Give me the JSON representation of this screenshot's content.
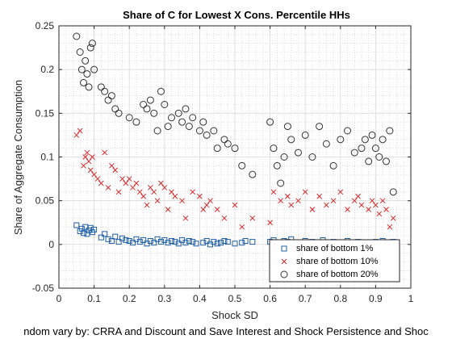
{
  "chart_data": {
    "type": "scatter",
    "title": "Share of C for Lowest X Cons. Percentile HHs",
    "xlabel": "Shock SD",
    "ylabel": "Share of Aggregate Consumption",
    "footnote": "ndom vary by: CRRA and Discount and Save Interest and Shock Persistence and Shoc",
    "xlim": [
      0,
      1
    ],
    "ylim": [
      -0.05,
      0.25
    ],
    "xticks": [
      "0",
      "0.1",
      "0.2",
      "0.3",
      "0.4",
      "0.5",
      "0.6",
      "0.7",
      "0.8",
      "0.9",
      "1"
    ],
    "yticks": [
      "-0.05",
      "0",
      "0.05",
      "0.1",
      "0.15",
      "0.2",
      "0.25"
    ],
    "grid": true,
    "minor_grid": true,
    "legend_position": "bottom-right",
    "series": [
      {
        "name": "share of bottom 1%",
        "marker": "square",
        "color": "#1f5fa8",
        "x": [
          0.05,
          0.06,
          0.065,
          0.07,
          0.075,
          0.08,
          0.085,
          0.09,
          0.095,
          0.1,
          0.12,
          0.13,
          0.14,
          0.15,
          0.16,
          0.17,
          0.18,
          0.19,
          0.2,
          0.21,
          0.22,
          0.23,
          0.24,
          0.25,
          0.26,
          0.27,
          0.28,
          0.29,
          0.3,
          0.31,
          0.32,
          0.33,
          0.34,
          0.35,
          0.36,
          0.37,
          0.38,
          0.39,
          0.41,
          0.42,
          0.43,
          0.44,
          0.45,
          0.46,
          0.47,
          0.48,
          0.5,
          0.52,
          0.53,
          0.55,
          0.6,
          0.61,
          0.62,
          0.63,
          0.64,
          0.65,
          0.66,
          0.68,
          0.69,
          0.7,
          0.72,
          0.74,
          0.75,
          0.76,
          0.78,
          0.8,
          0.82,
          0.84,
          0.85,
          0.86,
          0.88,
          0.9,
          0.91,
          0.92,
          0.93,
          0.94,
          0.95
        ],
        "y": [
          0.022,
          0.015,
          0.018,
          0.013,
          0.02,
          0.012,
          0.016,
          0.019,
          0.014,
          0.017,
          0.008,
          0.012,
          0.006,
          0.004,
          0.009,
          0.003,
          0.007,
          0.005,
          0.004,
          0.002,
          0.006,
          0.003,
          0.005,
          0.001,
          0.004,
          0.002,
          0.006,
          0.003,
          0.005,
          0.002,
          0.004,
          0.003,
          0.001,
          0.005,
          0.002,
          0.004,
          0.003,
          0.001,
          0.002,
          0.004,
          0.0,
          0.003,
          0.001,
          0.002,
          0.004,
          0.003,
          0.001,
          0.002,
          0.004,
          0.003,
          0.003,
          0.005,
          0.001,
          0.002,
          0.004,
          0.003,
          0.006,
          0.002,
          0.001,
          0.004,
          0.003,
          0.002,
          0.005,
          0.001,
          0.003,
          0.002,
          0.004,
          0.001,
          0.003,
          0.002,
          0.001,
          0.003,
          0.002,
          0.004,
          0.001,
          0.002,
          0.003
        ]
      },
      {
        "name": "share of bottom 10%",
        "marker": "x",
        "color": "#d62728",
        "x": [
          0.05,
          0.06,
          0.07,
          0.075,
          0.08,
          0.085,
          0.09,
          0.095,
          0.1,
          0.11,
          0.12,
          0.13,
          0.14,
          0.15,
          0.16,
          0.17,
          0.18,
          0.19,
          0.2,
          0.21,
          0.22,
          0.23,
          0.24,
          0.25,
          0.26,
          0.27,
          0.28,
          0.29,
          0.3,
          0.31,
          0.32,
          0.33,
          0.35,
          0.36,
          0.38,
          0.4,
          0.41,
          0.42,
          0.43,
          0.45,
          0.47,
          0.5,
          0.52,
          0.55,
          0.6,
          0.61,
          0.63,
          0.65,
          0.66,
          0.68,
          0.7,
          0.72,
          0.74,
          0.76,
          0.78,
          0.8,
          0.82,
          0.84,
          0.85,
          0.86,
          0.88,
          0.89,
          0.9,
          0.91,
          0.92,
          0.93,
          0.94,
          0.95
        ],
        "y": [
          0.125,
          0.13,
          0.09,
          0.1,
          0.105,
          0.095,
          0.085,
          0.1,
          0.08,
          0.075,
          0.07,
          0.105,
          0.065,
          0.09,
          0.085,
          0.06,
          0.075,
          0.07,
          0.075,
          0.065,
          0.07,
          0.06,
          0.055,
          0.045,
          0.065,
          0.06,
          0.05,
          0.07,
          0.065,
          0.04,
          0.06,
          0.055,
          0.05,
          0.03,
          0.06,
          0.055,
          0.04,
          0.045,
          0.05,
          0.04,
          0.03,
          0.045,
          0.02,
          0.03,
          0.025,
          0.06,
          0.05,
          0.055,
          0.045,
          0.05,
          0.06,
          0.04,
          0.055,
          0.045,
          0.05,
          0.06,
          0.04,
          0.05,
          0.055,
          0.045,
          0.04,
          0.05,
          0.045,
          0.035,
          0.05,
          0.04,
          0.02,
          0.03
        ]
      },
      {
        "name": "share of bottom 20%",
        "marker": "circle",
        "color": "#333333",
        "x": [
          0.05,
          0.06,
          0.065,
          0.07,
          0.075,
          0.08,
          0.085,
          0.09,
          0.095,
          0.1,
          0.12,
          0.13,
          0.14,
          0.15,
          0.16,
          0.17,
          0.2,
          0.22,
          0.24,
          0.25,
          0.26,
          0.27,
          0.28,
          0.29,
          0.3,
          0.31,
          0.32,
          0.34,
          0.35,
          0.36,
          0.37,
          0.38,
          0.4,
          0.41,
          0.42,
          0.44,
          0.45,
          0.47,
          0.48,
          0.5,
          0.52,
          0.55,
          0.6,
          0.61,
          0.62,
          0.63,
          0.64,
          0.65,
          0.66,
          0.68,
          0.7,
          0.72,
          0.74,
          0.76,
          0.78,
          0.8,
          0.82,
          0.84,
          0.86,
          0.87,
          0.88,
          0.89,
          0.9,
          0.91,
          0.92,
          0.93,
          0.94,
          0.95
        ],
        "y": [
          0.238,
          0.22,
          0.2,
          0.185,
          0.21,
          0.195,
          0.18,
          0.225,
          0.23,
          0.2,
          0.18,
          0.175,
          0.165,
          0.17,
          0.155,
          0.15,
          0.145,
          0.14,
          0.16,
          0.155,
          0.165,
          0.15,
          0.13,
          0.175,
          0.16,
          0.135,
          0.145,
          0.15,
          0.14,
          0.155,
          0.135,
          0.145,
          0.13,
          0.14,
          0.125,
          0.13,
          0.11,
          0.12,
          0.115,
          0.11,
          0.09,
          0.08,
          0.14,
          0.11,
          0.09,
          0.07,
          0.1,
          0.135,
          0.12,
          0.105,
          0.125,
          0.1,
          0.135,
          0.115,
          0.09,
          0.12,
          0.13,
          0.105,
          0.11,
          0.12,
          0.095,
          0.125,
          0.11,
          0.1,
          0.12,
          0.095,
          0.13,
          0.06
        ]
      }
    ]
  }
}
